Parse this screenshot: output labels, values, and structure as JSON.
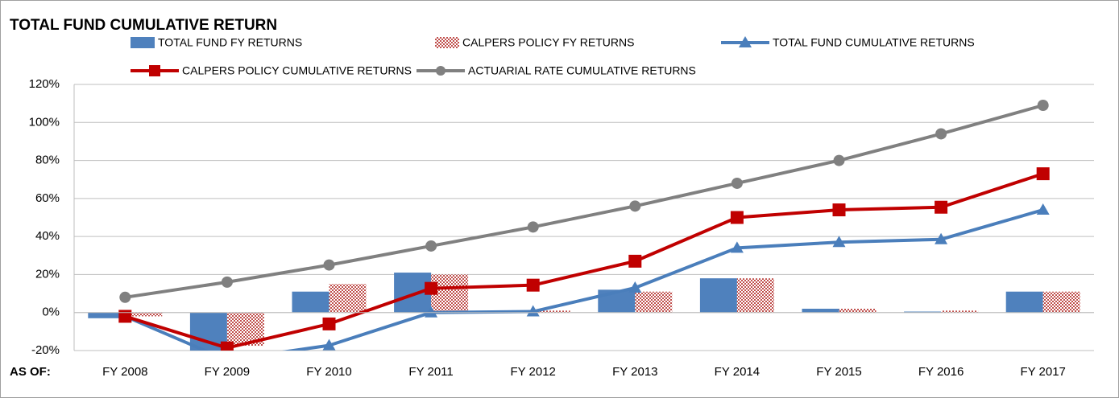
{
  "chart_data": {
    "type": "bar",
    "title": "TOTAL FUND CUMULATIVE RETURN",
    "xlabel": "AS OF:",
    "categories": [
      "FY 2008",
      "FY 2009",
      "FY 2010",
      "FY 2011",
      "FY 2012",
      "FY 2013",
      "FY 2014",
      "FY 2015",
      "FY 2016",
      "FY 2017"
    ],
    "series": [
      {
        "name": "TOTAL FUND FY RETURNS",
        "type": "bar",
        "color": "#4f81bd",
        "values": [
          -3,
          -24,
          11,
          21,
          0.3,
          12,
          18,
          2,
          0.5,
          11
        ]
      },
      {
        "name": "CALPERS POLICY FY RETURNS",
        "type": "bar",
        "pattern": true,
        "color": "#c0504d",
        "values": [
          -2,
          -17.5,
          15,
          20,
          1,
          11,
          18,
          2,
          1,
          11
        ]
      },
      {
        "name": "TOTAL FUND CUMULATIVE RETURNS",
        "type": "line",
        "marker": "triangle",
        "color": "#4a7ebb",
        "values": [
          -2,
          -25,
          -17.3,
          0,
          0.5,
          13,
          34,
          37,
          38.5,
          54
        ]
      },
      {
        "name": "CALPERS POLICY CUMULATIVE RETURNS",
        "type": "line",
        "marker": "square",
        "color": "#c00000",
        "values": [
          -2,
          -18.6,
          -6,
          12.7,
          14.4,
          27,
          50,
          54,
          55.4,
          73
        ]
      },
      {
        "name": "ACTUARIAL RATE CUMULATIVE RETURNS",
        "type": "line",
        "marker": "circle",
        "color": "#808080",
        "values": [
          8,
          16,
          25,
          35,
          45,
          56,
          68,
          80,
          94,
          109
        ]
      }
    ],
    "ylim": [
      -20,
      120
    ],
    "yticks": [
      {
        "value": -20,
        "label": "-20%"
      },
      {
        "value": 0,
        "label": "0%"
      },
      {
        "value": 20,
        "label": "20%"
      },
      {
        "value": 40,
        "label": "40%"
      },
      {
        "value": 60,
        "label": "60%"
      },
      {
        "value": 80,
        "label": "80%"
      },
      {
        "value": 100,
        "label": "100%"
      },
      {
        "value": 120,
        "label": "120%"
      }
    ],
    "grid": true
  }
}
